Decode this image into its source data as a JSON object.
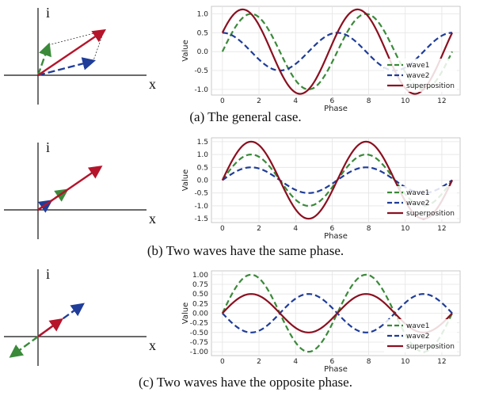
{
  "panels": [
    {
      "id": "a",
      "caption": "(a) The general case.",
      "vector_axes": {
        "y_label": "i",
        "x_label": "x"
      },
      "vectors": [
        {
          "name": "wave1",
          "color": "#3a8a3a",
          "dash": true,
          "end": [
            0.3,
            0.85
          ]
        },
        {
          "name": "wave2",
          "color": "#1f3d99",
          "dash": true,
          "end": [
            1.55,
            0.4
          ]
        },
        {
          "name": "superposition",
          "color": "#b5142b",
          "dash": false,
          "end": [
            1.85,
            1.25
          ]
        }
      ],
      "parallelogram": true,
      "chart_data": {
        "type": "line",
        "xlabel": "Phase",
        "ylabel": "Value",
        "xlim": [
          -0.6,
          13.0
        ],
        "ylim": [
          -1.15,
          1.2
        ],
        "xticks": [
          "0",
          "2",
          "4",
          "6",
          "8",
          "10",
          "12"
        ],
        "yticks": [
          "1.0",
          "0.5",
          "0.0",
          "-0.5",
          "-1.0"
        ],
        "ytick_values": [
          1.0,
          0.5,
          0.0,
          -0.5,
          -1.0
        ],
        "series": [
          {
            "name": "wave1",
            "color": "#3a8a3a",
            "dashed": true,
            "amp": 1.0,
            "phase": 0.0
          },
          {
            "name": "wave2",
            "color": "#1f3d99",
            "dashed": true,
            "amp": 0.5,
            "phase": 1.57
          },
          {
            "name": "superposition",
            "color": "#8b1020",
            "dashed": false,
            "amp": 1.118,
            "phase": 0.4636
          }
        ],
        "legend": "bottom-right"
      }
    },
    {
      "id": "b",
      "caption": "(b) Two waves have the same phase.",
      "vector_axes": {
        "y_label": "i",
        "x_label": "x"
      },
      "vectors": [
        {
          "name": "wave1",
          "color": "#3a8a3a",
          "dash": true,
          "end": [
            0.8,
            0.55
          ]
        },
        {
          "name": "wave2",
          "color": "#1f3d99",
          "dash": true,
          "end": [
            0.35,
            0.24
          ]
        },
        {
          "name": "superposition",
          "color": "#b5142b",
          "dash": false,
          "end": [
            1.75,
            1.2
          ]
        }
      ],
      "parallelogram": false,
      "chart_data": {
        "type": "line",
        "xlabel": "Phase",
        "ylabel": "Value",
        "xlim": [
          -0.6,
          13.0
        ],
        "ylim": [
          -1.65,
          1.65
        ],
        "xticks": [
          "0",
          "2",
          "4",
          "6",
          "8",
          "10",
          "12"
        ],
        "yticks": [
          "1.5",
          "1.0",
          "0.5",
          "0.0",
          "-0.5",
          "-1.0",
          "-1.5"
        ],
        "ytick_values": [
          1.5,
          1.0,
          0.5,
          0.0,
          -0.5,
          -1.0,
          -1.5
        ],
        "series": [
          {
            "name": "wave1",
            "color": "#3a8a3a",
            "dashed": true,
            "amp": 1.0,
            "phase": 0.0
          },
          {
            "name": "wave2",
            "color": "#1f3d99",
            "dashed": true,
            "amp": 0.5,
            "phase": 0.0
          },
          {
            "name": "superposition",
            "color": "#8b1020",
            "dashed": false,
            "amp": 1.5,
            "phase": 0.0
          }
        ],
        "legend": "bottom-right"
      }
    },
    {
      "id": "c",
      "caption": "(c) Two waves have the opposite phase.",
      "vector_axes": {
        "y_label": "i",
        "x_label": "x"
      },
      "vectors": [
        {
          "name": "wave1",
          "color": "#3a8a3a",
          "dash": true,
          "end": [
            -0.75,
            -0.55
          ]
        },
        {
          "name": "wave2",
          "color": "#1f3d99",
          "dash": true,
          "end": [
            1.25,
            0.9
          ]
        },
        {
          "name": "superposition",
          "color": "#b5142b",
          "dash": false,
          "end": [
            0.65,
            0.47
          ]
        }
      ],
      "parallelogram": false,
      "chart_data": {
        "type": "line",
        "xlabel": "Phase",
        "ylabel": "Value",
        "xlim": [
          -0.6,
          13.0
        ],
        "ylim": [
          -1.1,
          1.1
        ],
        "xticks": [
          "0",
          "2",
          "4",
          "6",
          "8",
          "10",
          "12"
        ],
        "yticks": [
          "1.00",
          "0.75",
          "0.50",
          "0.25",
          "0.00",
          "-0.25",
          "-0.50",
          "-0.75",
          "-1.00"
        ],
        "ytick_values": [
          1.0,
          0.75,
          0.5,
          0.25,
          0.0,
          -0.25,
          -0.5,
          -0.75,
          -1.0
        ],
        "series": [
          {
            "name": "wave1",
            "color": "#3a8a3a",
            "dashed": true,
            "amp": 1.0,
            "phase": 0.0
          },
          {
            "name": "wave2",
            "color": "#1f3d99",
            "dashed": true,
            "amp": -0.5,
            "phase": 0.0
          },
          {
            "name": "superposition",
            "color": "#8b1020",
            "dashed": false,
            "amp": 0.5,
            "phase": 0.0
          }
        ],
        "legend": "bottom-right"
      }
    }
  ]
}
